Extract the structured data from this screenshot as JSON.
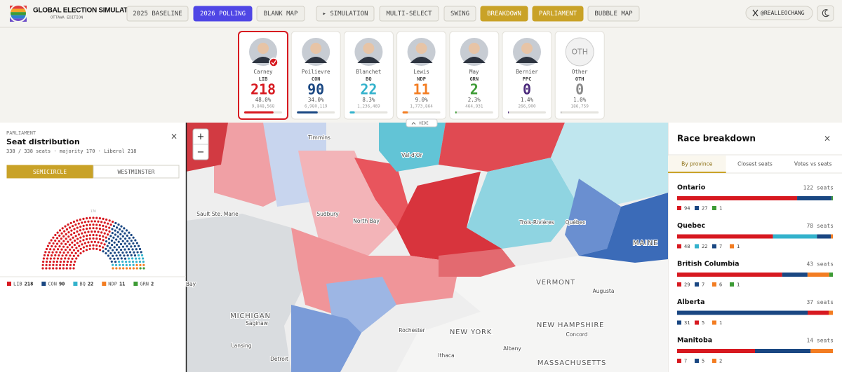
{
  "header": {
    "title": "GLOBAL ELECTION SIMULATOR",
    "subtitle": "OTTAWA EDITION",
    "buttons": [
      {
        "label": "2025 BASELINE",
        "state": "plain"
      },
      {
        "label": "2026 POLLING",
        "state": "active"
      },
      {
        "label": "BLANK MAP",
        "state": "plain"
      },
      {
        "label": "▸ SIMULATION",
        "state": "plain"
      },
      {
        "label": "MULTI-SELECT",
        "state": "plain"
      },
      {
        "label": "SWING",
        "state": "plain"
      },
      {
        "label": "BREAKDOWN",
        "state": "highlight"
      },
      {
        "label": "PARLIAMENT",
        "state": "highlight"
      },
      {
        "label": "BUBBLE MAP",
        "state": "plain"
      }
    ],
    "handle": "@REALLEOCHANG"
  },
  "candidates": [
    {
      "name": "Carney",
      "party": "LIB",
      "seats": 218,
      "pct": {
        "value": 48.0,
        "label": "48.0%"
      },
      "votes": {
        "value": 9848568,
        "label": "9,848,568"
      },
      "color": "#d71920",
      "selected": true
    },
    {
      "name": "Poilievre",
      "party": "CON",
      "seats": 90,
      "pct": {
        "value": 34.0,
        "label": "34.0%"
      },
      "votes": {
        "value": 6980119,
        "label": "6,980,119"
      },
      "color": "#1a4782",
      "selected": false
    },
    {
      "name": "Blanchet",
      "party": "BQ",
      "seats": 22,
      "pct": {
        "value": 8.3,
        "label": "8.3%"
      },
      "votes": {
        "value": 1236469,
        "label": "1,236,469"
      },
      "color": "#33b2cc",
      "selected": false
    },
    {
      "name": "Lewis",
      "party": "NDP",
      "seats": 11,
      "pct": {
        "value": 9.0,
        "label": "9.0%"
      },
      "votes": {
        "value": 1773864,
        "label": "1,773,864"
      },
      "color": "#f37d22",
      "selected": false
    },
    {
      "name": "May",
      "party": "GRN",
      "seats": 2,
      "pct": {
        "value": 2.3,
        "label": "2.3%"
      },
      "votes": {
        "value": 464931,
        "label": "464,931"
      },
      "color": "#3d9b35",
      "selected": false
    },
    {
      "name": "Bernier",
      "party": "PPC",
      "seats": 0,
      "pct": {
        "value": 1.4,
        "label": "1.4%"
      },
      "votes": {
        "value": 266900,
        "label": "266,900"
      },
      "color": "#4b2a7b",
      "selected": false
    },
    {
      "name": "Other",
      "party": "OTH",
      "seats": 0,
      "pct": {
        "value": 1.0,
        "label": "1.0%"
      },
      "votes": {
        "value": 186759,
        "label": "186,759"
      },
      "color": "#8a8a8a",
      "selected": false
    }
  ],
  "parliament": {
    "kicker": "PARLIAMENT",
    "title": "Seat distribution",
    "summary": "338 / 338 seats · majority 170 · Liberal 218",
    "close": "×",
    "majority": 170,
    "toggles": [
      "SEMICIRCLE",
      "WESTMINSTER"
    ],
    "active_toggle": 0
  },
  "map": {
    "zoom": [
      "+",
      "−"
    ],
    "hide": "HIDE",
    "labels": [
      "Timmins",
      "Val-d'Or",
      "Sault Ste. Marie",
      "Sudbury",
      "North Bay",
      "Trois-Rivières",
      "Québec",
      "MAINE",
      "VERMONT",
      "Augusta",
      "NEW HAMPSHIRE",
      "Concord",
      "MICHIGAN",
      "Saginaw",
      "Lansing",
      "Detroit",
      "Rochester",
      "NEW YORK",
      "Albany",
      "Ithaca",
      "MASSACHUSETTS",
      "Bay"
    ]
  },
  "breakdown": {
    "title": "Race breakdown",
    "close": "×",
    "tabs": [
      "By province",
      "Closest seats",
      "Votes vs seats"
    ],
    "active_tab": 0,
    "provinces": [
      {
        "name": "Ontario",
        "seats": {
          "value": 122,
          "label": "122 seats"
        },
        "parties": [
          {
            "color": "#d71920",
            "seats": 94
          },
          {
            "color": "#1a4782",
            "seats": 27
          },
          {
            "color": "#3d9b35",
            "seats": 1
          }
        ]
      },
      {
        "name": "Quebec",
        "seats": {
          "value": 78,
          "label": "78 seats"
        },
        "parties": [
          {
            "color": "#d71920",
            "seats": 48
          },
          {
            "color": "#33b2cc",
            "seats": 22
          },
          {
            "color": "#1a4782",
            "seats": 7
          },
          {
            "color": "#f37d22",
            "seats": 1
          }
        ]
      },
      {
        "name": "British Columbia",
        "seats": {
          "value": 43,
          "label": "43 seats"
        },
        "parties": [
          {
            "color": "#d71920",
            "seats": 29
          },
          {
            "color": "#1a4782",
            "seats": 7
          },
          {
            "color": "#f37d22",
            "seats": 6
          },
          {
            "color": "#3d9b35",
            "seats": 1
          }
        ]
      },
      {
        "name": "Alberta",
        "seats": {
          "value": 37,
          "label": "37 seats"
        },
        "parties": [
          {
            "color": "#1a4782",
            "seats": 31
          },
          {
            "color": "#d71920",
            "seats": 5
          },
          {
            "color": "#f37d22",
            "seats": 1
          }
        ]
      },
      {
        "name": "Manitoba",
        "seats": {
          "value": 14,
          "label": "14 seats"
        },
        "parties": [
          {
            "color": "#d71920",
            "seats": 7
          },
          {
            "color": "#1a4782",
            "seats": 5
          },
          {
            "color": "#f37d22",
            "seats": 2
          }
        ]
      }
    ]
  }
}
